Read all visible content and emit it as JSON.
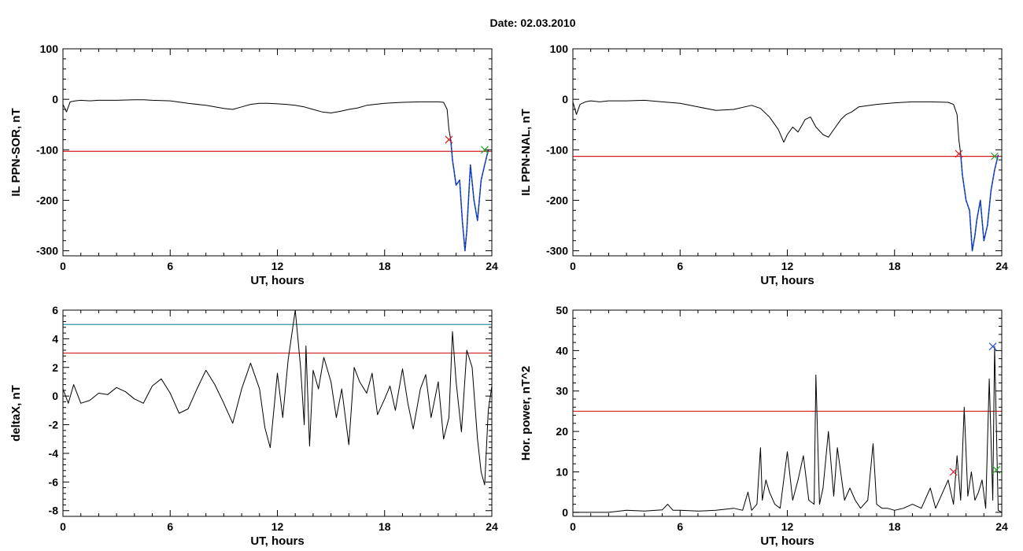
{
  "page": {
    "title": "Date:  02.03.2010"
  },
  "colors": {
    "trace": "#000000",
    "threshold": "#d21e1e",
    "highlight": "#1f4fd6",
    "cyan_line": "#17868f",
    "green_mark": "#20a020",
    "blue_mark": "#1f4fd6"
  },
  "chart_data": [
    {
      "id": "ppn_sor",
      "type": "line",
      "title": "",
      "xlabel": "UT, hours",
      "ylabel": "IL PPN-SOR, nT",
      "xlim": [
        0,
        24
      ],
      "ylim": [
        -310,
        100
      ],
      "xticks": [
        0,
        6,
        12,
        18,
        24
      ],
      "yticks": [
        -300,
        -200,
        -100,
        0,
        100
      ],
      "grid": false,
      "series": [
        {
          "style": "black",
          "x": [
            0,
            0.2,
            0.4,
            0.7,
            1,
            1.5,
            2,
            3,
            4,
            4.5,
            5,
            6,
            7,
            8,
            9,
            9.5,
            10,
            10.5,
            11,
            11.5,
            12,
            12.5,
            13,
            13.5,
            14,
            14.5,
            15,
            15.5,
            16,
            16.5,
            17,
            18,
            19,
            20,
            20.5,
            21,
            21.3,
            21.5
          ],
          "y": [
            -10,
            -25,
            -5,
            -3,
            -2,
            -3,
            -2,
            -2,
            -1,
            -1,
            -2,
            -3,
            -8,
            -12,
            -18,
            -20,
            -15,
            -10,
            -8,
            -8,
            -9,
            -10,
            -12,
            -15,
            -20,
            -25,
            -27,
            -24,
            -20,
            -17,
            -12,
            -8,
            -6,
            -5,
            -5,
            -5,
            -6,
            -20
          ]
        },
        {
          "style": "black",
          "x": [
            21.5,
            21.6,
            21.7
          ],
          "y": [
            -20,
            -60,
            -80
          ]
        },
        {
          "style": "highlight",
          "x": [
            21.7,
            21.8,
            22,
            22.2,
            22.35,
            22.5,
            22.6,
            22.8,
            23,
            23.2,
            23.4,
            23.6,
            23.8
          ],
          "y": [
            -80,
            -120,
            -170,
            -160,
            -240,
            -300,
            -260,
            -130,
            -200,
            -240,
            -160,
            -130,
            -100
          ]
        }
      ],
      "thresholds": [
        {
          "style": "red",
          "y": -103
        }
      ],
      "markers": [
        {
          "style": "red-x",
          "x": 21.6,
          "y": -80
        },
        {
          "style": "green-x",
          "x": 23.6,
          "y": -100
        }
      ]
    },
    {
      "id": "ppn_nal",
      "type": "line",
      "title": "",
      "xlabel": "UT, hours",
      "ylabel": "IL PPN-NAL, nT",
      "xlim": [
        0,
        24
      ],
      "ylim": [
        -310,
        100
      ],
      "xticks": [
        0,
        6,
        12,
        18,
        24
      ],
      "yticks": [
        -300,
        -200,
        -100,
        0,
        100
      ],
      "grid": false,
      "series": [
        {
          "style": "black",
          "x": [
            0,
            0.2,
            0.4,
            0.7,
            1,
            1.5,
            2,
            3,
            4,
            5,
            6,
            7,
            8,
            9,
            10,
            10.5,
            11,
            11.5,
            11.8,
            12,
            12.3,
            12.6,
            13,
            13.3,
            13.6,
            14,
            14.3,
            14.6,
            15,
            15.3,
            15.6,
            16,
            17,
            18,
            19,
            20,
            21,
            21.3,
            21.5
          ],
          "y": [
            -5,
            -30,
            -10,
            -5,
            -3,
            -5,
            -3,
            -3,
            -2,
            -5,
            -8,
            -15,
            -22,
            -20,
            -12,
            -18,
            -35,
            -60,
            -85,
            -70,
            -55,
            -65,
            -40,
            -35,
            -55,
            -70,
            -75,
            -60,
            -40,
            -30,
            -25,
            -15,
            -10,
            -7,
            -5,
            -5,
            -6,
            -10,
            -30
          ]
        },
        {
          "style": "black",
          "x": [
            21.5,
            21.6,
            21.7
          ],
          "y": [
            -30,
            -80,
            -108
          ]
        },
        {
          "style": "highlight",
          "x": [
            21.7,
            21.8,
            22,
            22.2,
            22.35,
            22.5,
            22.6,
            22.8,
            23,
            23.2,
            23.4,
            23.6,
            23.8
          ],
          "y": [
            -108,
            -150,
            -200,
            -220,
            -300,
            -270,
            -240,
            -200,
            -280,
            -250,
            -180,
            -140,
            -110
          ]
        }
      ],
      "thresholds": [
        {
          "style": "red",
          "y": -113
        }
      ],
      "markers": [
        {
          "style": "red-x",
          "x": 21.6,
          "y": -108
        },
        {
          "style": "green-x",
          "x": 23.6,
          "y": -113
        }
      ]
    },
    {
      "id": "deltax",
      "type": "line",
      "title": "",
      "xlabel": "UT, hours",
      "ylabel": "deltaX, nT",
      "xlim": [
        0,
        24
      ],
      "ylim": [
        -8.4,
        6
      ],
      "xticks": [
        0,
        6,
        12,
        18,
        24
      ],
      "yticks": [
        -8,
        -6,
        -4,
        -2,
        0,
        2,
        4,
        6
      ],
      "grid": false,
      "series": [
        {
          "style": "black",
          "x": [
            0,
            0.3,
            0.6,
            1,
            1.5,
            2,
            2.5,
            3,
            3.5,
            4,
            4.5,
            5,
            5.5,
            6,
            6.5,
            7,
            7.5,
            8,
            8.5,
            9,
            9.5,
            10,
            10.5,
            11,
            11.3,
            11.6,
            12,
            12.3,
            12.6,
            13,
            13.3,
            13.5,
            13.6,
            13.8,
            14,
            14.3,
            14.6,
            15,
            15.3,
            15.6,
            16,
            16.3,
            16.6,
            17,
            17.3,
            17.6,
            18,
            18.3,
            18.6,
            19,
            19.3,
            19.6,
            20,
            20.3,
            20.6,
            21,
            21.3,
            21.6,
            21.8,
            22,
            22.3,
            22.6,
            22.9,
            23.2,
            23.4,
            23.6,
            23.8,
            24
          ],
          "y": [
            0.5,
            -0.5,
            0.8,
            -0.5,
            -0.3,
            0.2,
            0.1,
            0.6,
            0.3,
            -0.2,
            -0.5,
            0.7,
            1.2,
            0.2,
            -1.2,
            -0.9,
            0.5,
            1.8,
            0.8,
            -0.5,
            -1.9,
            0.5,
            2.3,
            0.5,
            -2.2,
            -3.6,
            1.6,
            -1.5,
            2.5,
            6.0,
            2.0,
            -2.0,
            3.5,
            -3.5,
            1.8,
            0.5,
            2.7,
            1.0,
            -1.5,
            0.5,
            -3.4,
            2.0,
            1.0,
            0.2,
            1.6,
            -1.3,
            -0.2,
            0.7,
            -1.0,
            1.9,
            -0.5,
            -2.3,
            0.5,
            1.5,
            -1.5,
            1.0,
            -3.0,
            -1.5,
            4.5,
            1.0,
            -2.5,
            3.2,
            2.0,
            -3.0,
            -5.3,
            -6.2,
            -1.0,
            0.7
          ]
        }
      ],
      "thresholds": [
        {
          "style": "cyan",
          "y": 5.0
        },
        {
          "style": "red",
          "y": 3.0
        }
      ],
      "markers": []
    },
    {
      "id": "hor_power",
      "type": "line",
      "title": "",
      "xlabel": "UT, hours",
      "ylabel": "Hor. power, nT^2",
      "xlim": [
        0,
        24
      ],
      "ylim": [
        -1,
        50
      ],
      "xticks": [
        0,
        6,
        12,
        18,
        24
      ],
      "yticks": [
        0,
        10,
        20,
        30,
        40,
        50
      ],
      "grid": false,
      "series": [
        {
          "style": "black",
          "x": [
            0,
            1,
            2,
            3,
            4,
            5,
            5.3,
            5.6,
            6,
            7,
            8,
            9,
            9.5,
            9.8,
            10,
            10.3,
            10.5,
            10.6,
            10.8,
            11,
            11.3,
            11.6,
            12,
            12.3,
            12.6,
            12.9,
            13.2,
            13.5,
            13.6,
            13.8,
            14,
            14.3,
            14.6,
            14.8,
            15.2,
            15.5,
            15.8,
            16.1,
            16.5,
            16.8,
            17,
            17.3,
            17.6,
            18,
            18.5,
            19,
            19.5,
            20,
            20.3,
            20.6,
            21,
            21.3,
            21.5,
            21.7,
            21.9,
            22.1,
            22.3,
            22.5,
            22.7,
            22.9,
            23.1,
            23.3,
            23.5,
            23.6,
            23.8,
            24
          ],
          "y": [
            0,
            0,
            0,
            0.5,
            0.3,
            0.6,
            2,
            0.5,
            0.5,
            0.3,
            0.5,
            1,
            0.5,
            5,
            0.5,
            2,
            16,
            3,
            8,
            5,
            2,
            1,
            15,
            3,
            8,
            14,
            3,
            2,
            34,
            2,
            6,
            20,
            4,
            16,
            3,
            6,
            3,
            1,
            3,
            17,
            2,
            1,
            1,
            0.5,
            1,
            2,
            1,
            6,
            1,
            4,
            8,
            2,
            14,
            3,
            26,
            4,
            10,
            3,
            5,
            8,
            1,
            33,
            3,
            41,
            0.5,
            0
          ]
        }
      ],
      "thresholds": [
        {
          "style": "red",
          "y": 25
        }
      ],
      "markers": [
        {
          "style": "red-x",
          "x": 21.3,
          "y": 10
        },
        {
          "style": "blue-x",
          "x": 23.5,
          "y": 41
        },
        {
          "style": "green-x",
          "x": 23.7,
          "y": 10.5
        }
      ]
    }
  ]
}
